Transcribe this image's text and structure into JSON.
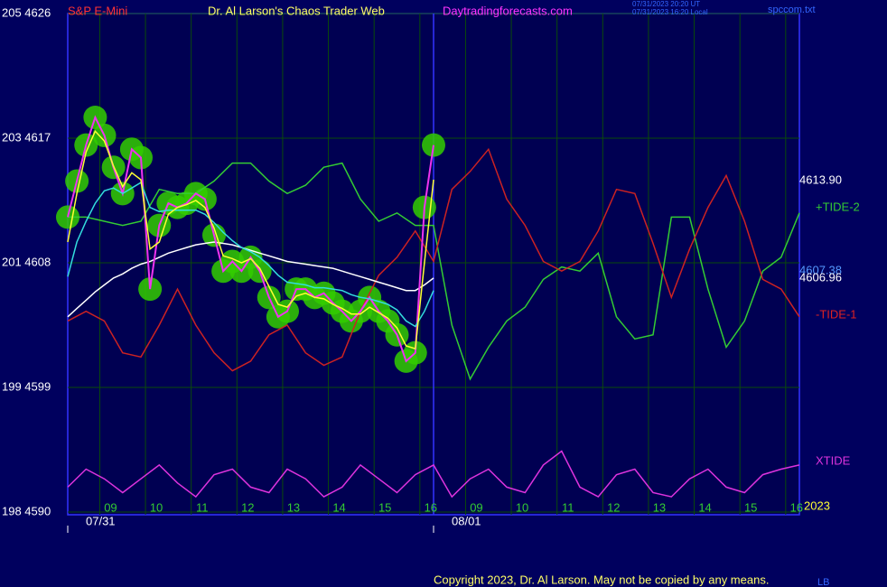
{
  "chart_data": {
    "type": "line",
    "title": "Dr. Al Larson's Chaos Trader Web",
    "subtitle": "S&P E-Mini",
    "site": "Daytradingforecasts.com",
    "timestamps": [
      "07/31/2023 20:20 UT",
      "07/31/2023 16:20 Local"
    ],
    "file": "spccom.txt",
    "dates": [
      "07/31",
      "08/01"
    ],
    "last_values": [
      "4613.90",
      "4607.38",
      "4606.96"
    ],
    "year": "2023",
    "copyright": "Copyright 2023, Dr. Al Larson. May not be copied by any means.",
    "initials": "LB",
    "grid": true,
    "xlim": [
      0,
      16
    ],
    "ylim": [
      4590,
      4626
    ],
    "yticks": [
      {
        "value": 4626,
        "label": "205 4626"
      },
      {
        "value": 4617,
        "label": "203 4617"
      },
      {
        "value": 4608,
        "label": "201 4608"
      },
      {
        "value": 4599,
        "label": "199 4599"
      },
      {
        "value": 4590,
        "label": "198 4590"
      }
    ],
    "xticks": [
      {
        "value": 0.7,
        "label": "09"
      },
      {
        "value": 1.7,
        "label": "10"
      },
      {
        "value": 2.7,
        "label": "11"
      },
      {
        "value": 3.7,
        "label": "12"
      },
      {
        "value": 4.7,
        "label": "13"
      },
      {
        "value": 5.7,
        "label": "14"
      },
      {
        "value": 6.7,
        "label": "15"
      },
      {
        "value": 7.7,
        "label": "16"
      },
      {
        "value": 8.7,
        "label": "09"
      },
      {
        "value": 9.7,
        "label": "10"
      },
      {
        "value": 10.7,
        "label": "11"
      },
      {
        "value": 11.7,
        "label": "12"
      },
      {
        "value": 12.7,
        "label": "13"
      },
      {
        "value": 13.7,
        "label": "14"
      },
      {
        "value": 14.7,
        "label": "15"
      },
      {
        "value": 15.7,
        "label": "16"
      }
    ],
    "series": [
      {
        "name": "+TIDE-2",
        "color": "#33cc33",
        "x": [
          0,
          0.4,
          0.8,
          1.2,
          1.6,
          2,
          2.4,
          2.8,
          3.2,
          3.6,
          4,
          4.4,
          4.8,
          5.2,
          5.6,
          6,
          6.4,
          6.8,
          7.2,
          7.6,
          8,
          8.4,
          8.8,
          9.2,
          9.6,
          10,
          10.4,
          10.8,
          11.2,
          11.6,
          12,
          12.4,
          12.8,
          13.2,
          13.6,
          14,
          14.4,
          14.8,
          15.2,
          15.6,
          16
        ],
        "values": [
          4611.3,
          4611.3,
          4611.0,
          4610.7,
          4611.0,
          4613.3,
          4613.0,
          4613.0,
          4613.9,
          4615.2,
          4615.2,
          4613.9,
          4613.0,
          4613.6,
          4614.9,
          4615.2,
          4612.6,
          4611.0,
          4611.6,
          4610.7,
          4610.7,
          4603.5,
          4599.6,
          4601.9,
          4603.8,
          4604.8,
          4606.8,
          4607.7,
          4607.4,
          4608.7,
          4604.1,
          4602.5,
          4602.8,
          4611.3,
          4611.3,
          4606.1,
          4601.9,
          4603.8,
          4607.4,
          4608.4,
          4611.6
        ]
      },
      {
        "name": "-TIDE-1",
        "color": "#cc2222",
        "x": [
          0,
          0.4,
          0.8,
          1.2,
          1.6,
          2,
          2.4,
          2.8,
          3.2,
          3.6,
          4,
          4.4,
          4.8,
          5.2,
          5.6,
          6,
          6.4,
          6.8,
          7.2,
          7.6,
          8,
          8.4,
          8.8,
          9.2,
          9.6,
          10,
          10.4,
          10.8,
          11.2,
          11.6,
          12,
          12.4,
          12.8,
          13.2,
          13.6,
          14,
          14.4,
          14.8,
          15.2,
          15.6,
          16
        ],
        "values": [
          4603.8,
          4604.5,
          4603.8,
          4601.5,
          4601.2,
          4603.5,
          4606.1,
          4603.5,
          4601.5,
          4600.2,
          4600.9,
          4602.8,
          4603.5,
          4601.5,
          4600.6,
          4601.2,
          4604.5,
          4607.1,
          4608.4,
          4610.3,
          4608.1,
          4613.3,
          4614.6,
          4616.2,
          4612.6,
          4610.7,
          4608.1,
          4607.4,
          4608.1,
          4610.3,
          4613.3,
          4613.0,
          4609.4,
          4605.5,
          4609.0,
          4612.0,
          4614.3,
          4611.0,
          4606.8,
          4606.1,
          4604.1
        ]
      },
      {
        "name": "XTIDE",
        "color": "#dd33dd",
        "x": [
          0,
          0.4,
          0.8,
          1.2,
          1.6,
          2,
          2.4,
          2.8,
          3.2,
          3.6,
          4,
          4.4,
          4.8,
          5.2,
          5.6,
          6,
          6.4,
          6.8,
          7.2,
          7.6,
          8,
          8.4,
          8.8,
          9.2,
          9.6,
          10,
          10.4,
          10.8,
          11.2,
          11.6,
          12,
          12.4,
          12.8,
          13.2,
          13.6,
          14,
          14.4,
          14.8,
          15.2,
          15.6,
          16
        ],
        "values": [
          4591.8,
          4593.1,
          4592.4,
          4591.4,
          4592.4,
          4593.4,
          4592.1,
          4591.1,
          4592.7,
          4593.1,
          4591.8,
          4591.4,
          4593.1,
          4592.4,
          4591.1,
          4591.8,
          4593.4,
          4592.4,
          4591.4,
          4592.7,
          4593.4,
          4591.1,
          4592.4,
          4593.1,
          4591.8,
          4591.4,
          4593.4,
          4594.4,
          4591.8,
          4591.1,
          4592.7,
          4593.1,
          4591.4,
          4591.1,
          4592.4,
          4593.1,
          4591.8,
          4591.4,
          4592.7,
          4593.1,
          4593.4
        ]
      },
      {
        "color": "#ffffff",
        "x": [
          0,
          0.2,
          0.4,
          0.6,
          0.8,
          1,
          1.2,
          1.4,
          1.6,
          1.8,
          2,
          2.2,
          2.4,
          2.6,
          2.8,
          3,
          3.2,
          3.4,
          3.6,
          3.8,
          4,
          4.2,
          4.4,
          4.6,
          4.8,
          5,
          5.2,
          5.4,
          5.6,
          5.8,
          6,
          6.2,
          6.4,
          6.6,
          6.8,
          7,
          7.2,
          7.4,
          7.6,
          7.8,
          8
        ],
        "values": [
          4604.1,
          4604.7,
          4605.3,
          4605.9,
          4606.4,
          4606.9,
          4607.2,
          4607.6,
          4607.9,
          4608.1,
          4608.4,
          4608.7,
          4608.9,
          4609.1,
          4609.3,
          4609.4,
          4609.5,
          4609.4,
          4609.3,
          4609.1,
          4608.9,
          4608.7,
          4608.5,
          4608.3,
          4608.1,
          4608.0,
          4607.9,
          4607.8,
          4607.7,
          4607.6,
          4607.4,
          4607.2,
          4607.0,
          4606.8,
          4606.6,
          4606.4,
          4606.2,
          4606.0,
          4606.0,
          4606.4,
          4606.9
        ]
      },
      {
        "halo_color": "#33cc00",
        "color": "#ee33ee",
        "x": [
          0,
          0.2,
          0.4,
          0.6,
          0.8,
          1,
          1.2,
          1.4,
          1.6,
          1.8,
          2,
          2.2,
          2.4,
          2.6,
          2.8,
          3,
          3.2,
          3.4,
          3.6,
          3.8,
          4,
          4.2,
          4.4,
          4.6,
          4.8,
          5,
          5.2,
          5.4,
          5.6,
          5.8,
          6,
          6.2,
          6.4,
          6.6,
          6.8,
          7,
          7.2,
          7.4,
          7.6,
          7.8,
          8
        ],
        "values": [
          4611.3,
          4613.9,
          4616.5,
          4618.5,
          4617.2,
          4614.9,
          4613.0,
          4616.2,
          4615.6,
          4606.1,
          4610.7,
          4612.3,
          4612.0,
          4612.3,
          4613.0,
          4612.6,
          4610.0,
          4607.4,
          4608.1,
          4607.4,
          4608.4,
          4607.4,
          4605.5,
          4604.1,
          4604.5,
          4606.1,
          4606.1,
          4605.5,
          4605.8,
          4605.1,
          4604.5,
          4603.8,
          4604.5,
          4605.5,
          4604.5,
          4603.8,
          4602.8,
          4600.9,
          4601.5,
          4612.0,
          4616.5
        ]
      },
      {
        "color": "#33dddd",
        "x": [
          0,
          0.2,
          0.4,
          0.6,
          0.8,
          1,
          1.2,
          1.4,
          1.6,
          1.8,
          2,
          2.2,
          2.4,
          2.6,
          2.8,
          3,
          3.2,
          3.4,
          3.6,
          3.8,
          4,
          4.2,
          4.4,
          4.6,
          4.8,
          5,
          5.2,
          5.4,
          5.6,
          5.8,
          6,
          6.2,
          6.4,
          6.6,
          6.8,
          7,
          7.2,
          7.4,
          7.6,
          7.8,
          8
        ],
        "values": [
          4607.0,
          4609.5,
          4611.0,
          4612.3,
          4613.2,
          4613.4,
          4613.0,
          4613.4,
          4613.8,
          4612.0,
          4611.7,
          4611.8,
          4611.8,
          4611.8,
          4611.8,
          4611.5,
          4610.9,
          4610.2,
          4609.6,
          4609.1,
          4608.8,
          4608.4,
          4607.8,
          4607.1,
          4606.6,
          4606.5,
          4606.4,
          4606.2,
          4606.2,
          4606.1,
          4606.0,
          4605.7,
          4605.5,
          4605.4,
          4605.2,
          4605.0,
          4604.6,
          4603.8,
          4603.4,
          4604.5,
          4606.0
        ]
      },
      {
        "color": "#ffff33",
        "x": [
          0,
          0.2,
          0.4,
          0.6,
          0.8,
          1,
          1.2,
          1.4,
          1.6,
          1.8,
          2,
          2.2,
          2.4,
          2.6,
          2.8,
          3,
          3.2,
          3.4,
          3.6,
          3.8,
          4,
          4.2,
          4.4,
          4.6,
          4.8,
          5,
          5.2,
          5.4,
          5.6,
          5.8,
          6,
          6.2,
          6.4,
          6.6,
          6.8,
          7,
          7.2,
          7.4,
          7.6,
          7.8,
          8
        ],
        "values": [
          4609.5,
          4613.0,
          4616.0,
          4617.5,
          4616.8,
          4615.0,
          4613.5,
          4614.5,
          4614.0,
          4609.0,
          4609.5,
          4611.5,
          4612.0,
          4612.2,
          4612.5,
          4612.0,
          4610.5,
          4608.5,
          4608.3,
          4608.0,
          4608.3,
          4607.6,
          4606.3,
          4605.0,
          4604.8,
          4605.6,
          4605.8,
          4605.5,
          4605.4,
          4605.0,
          4604.7,
          4604.3,
          4604.3,
          4604.8,
          4604.4,
          4604.0,
          4603.3,
          4602.0,
          4601.8,
          4608.0,
          4614.0
        ]
      }
    ]
  }
}
